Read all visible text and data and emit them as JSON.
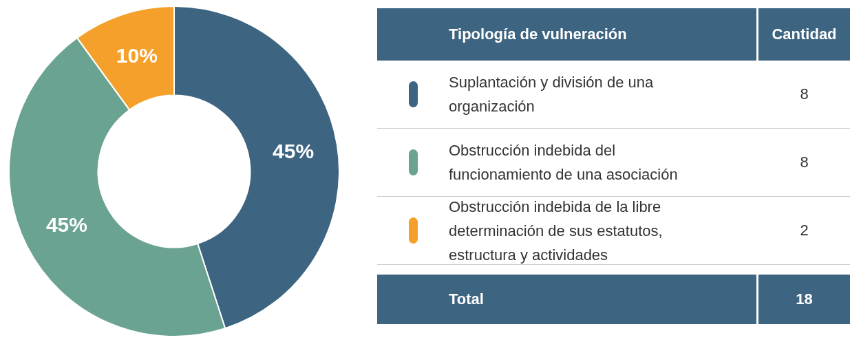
{
  "chart_data": {
    "type": "donut",
    "categories": [
      "Suplantación y división de una organización",
      "Obstrucción indebida del funcionamiento de una asociación",
      "Obstrucción indebida de la libre determinación de sus estatutos, estructura y actividades"
    ],
    "values": [
      45,
      45,
      10
    ],
    "colors": [
      "#3d6480",
      "#6ba393",
      "#f5a02a"
    ],
    "value_labels": [
      "45%",
      "45%",
      "10%"
    ],
    "legend": "right",
    "legend_title": "Tipología de vulneración",
    "annotations": [
      "Cantidad",
      "8",
      "8",
      "2",
      "Total",
      "18"
    ]
  }
}
